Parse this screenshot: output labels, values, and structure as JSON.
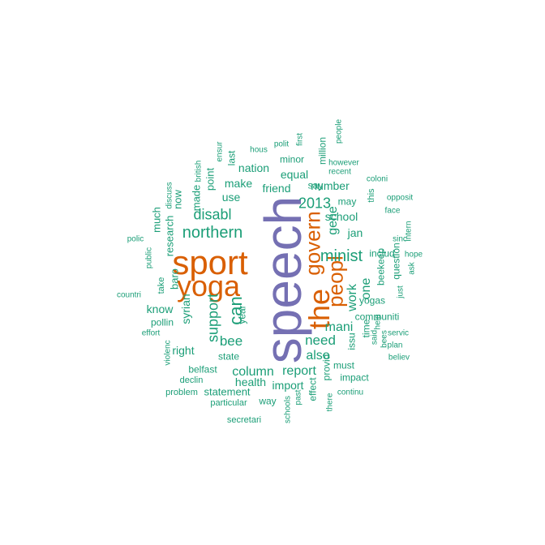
{
  "colors": {
    "teal": "#1b9e77",
    "orange": "#d95f02",
    "purple": "#7570b3"
  },
  "words": [
    {
      "text": "speech",
      "color": "purple"
    },
    {
      "text": "sport",
      "color": "orange"
    },
    {
      "text": "yoga",
      "color": "orange"
    },
    {
      "text": "the",
      "color": "orange"
    },
    {
      "text": "govern",
      "color": "orange"
    },
    {
      "text": "peopl",
      "color": "orange"
    },
    {
      "text": "northern",
      "color": "teal"
    },
    {
      "text": "minist",
      "color": "teal"
    },
    {
      "text": "disabl",
      "color": "teal"
    },
    {
      "text": "can",
      "color": "teal"
    },
    {
      "text": "2013",
      "color": "teal"
    },
    {
      "text": "support",
      "color": "teal"
    },
    {
      "text": "need",
      "color": "teal"
    },
    {
      "text": "mani",
      "color": "teal"
    },
    {
      "text": "work",
      "color": "teal"
    },
    {
      "text": "one",
      "color": "teal"
    },
    {
      "text": "gene",
      "color": "teal"
    },
    {
      "text": "bee",
      "color": "teal"
    },
    {
      "text": "also",
      "color": "teal"
    },
    {
      "text": "report",
      "color": "teal"
    },
    {
      "text": "column",
      "color": "teal"
    },
    {
      "text": "school",
      "color": "teal"
    },
    {
      "text": "jan",
      "color": "teal"
    },
    {
      "text": "use",
      "color": "teal"
    },
    {
      "text": "make",
      "color": "teal"
    },
    {
      "text": "nation",
      "color": "teal"
    },
    {
      "text": "equal",
      "color": "teal"
    },
    {
      "text": "friend",
      "color": "teal"
    },
    {
      "text": "number",
      "color": "teal"
    },
    {
      "text": "may",
      "color": "teal"
    },
    {
      "text": "includ",
      "color": "teal"
    },
    {
      "text": "beekeep",
      "color": "teal"
    },
    {
      "text": "question",
      "color": "teal"
    },
    {
      "text": "yogas",
      "color": "teal"
    },
    {
      "text": "communiti",
      "color": "teal"
    },
    {
      "text": "health",
      "color": "teal"
    },
    {
      "text": "import",
      "color": "teal"
    },
    {
      "text": "statement",
      "color": "teal"
    },
    {
      "text": "state",
      "color": "teal"
    },
    {
      "text": "right",
      "color": "teal"
    },
    {
      "text": "know",
      "color": "teal"
    },
    {
      "text": "pollin",
      "color": "teal"
    },
    {
      "text": "syrian",
      "color": "teal"
    },
    {
      "text": "year",
      "color": "teal"
    },
    {
      "text": "research",
      "color": "teal"
    },
    {
      "text": "much",
      "color": "teal"
    },
    {
      "text": "now",
      "color": "teal"
    },
    {
      "text": "made",
      "color": "teal"
    },
    {
      "text": "point",
      "color": "teal"
    },
    {
      "text": "last",
      "color": "teal"
    },
    {
      "text": "minor",
      "color": "teal"
    },
    {
      "text": "million",
      "color": "teal"
    },
    {
      "text": "say",
      "color": "teal"
    },
    {
      "text": "this",
      "color": "teal"
    },
    {
      "text": "time",
      "color": "teal"
    },
    {
      "text": "issu",
      "color": "teal"
    },
    {
      "text": "provid",
      "color": "teal"
    },
    {
      "text": "must",
      "color": "teal"
    },
    {
      "text": "impact",
      "color": "teal"
    },
    {
      "text": "effect",
      "color": "teal"
    },
    {
      "text": "way",
      "color": "teal"
    },
    {
      "text": "belfast",
      "color": "teal"
    },
    {
      "text": "declin",
      "color": "teal"
    },
    {
      "text": "problem",
      "color": "teal"
    },
    {
      "text": "particular",
      "color": "teal"
    },
    {
      "text": "secretari",
      "color": "teal"
    },
    {
      "text": "schools",
      "color": "teal"
    },
    {
      "text": "past",
      "color": "teal"
    },
    {
      "text": "there",
      "color": "teal"
    },
    {
      "text": "continu",
      "color": "teal"
    },
    {
      "text": "bees",
      "color": "teal"
    },
    {
      "text": "said",
      "color": "teal"
    },
    {
      "text": "help",
      "color": "teal"
    },
    {
      "text": "servic",
      "color": "teal"
    },
    {
      "text": "plan",
      "color": "teal"
    },
    {
      "text": "believ",
      "color": "teal"
    },
    {
      "text": "just",
      "color": "teal"
    },
    {
      "text": "ask",
      "color": "teal"
    },
    {
      "text": "hope",
      "color": "teal"
    },
    {
      "text": "intern",
      "color": "teal"
    },
    {
      "text": "sinc",
      "color": "teal"
    },
    {
      "text": "face",
      "color": "teal"
    },
    {
      "text": "opposit",
      "color": "teal"
    },
    {
      "text": "coloni",
      "color": "teal"
    },
    {
      "text": "however",
      "color": "teal"
    },
    {
      "text": "recent",
      "color": "teal"
    },
    {
      "text": "people",
      "color": "teal"
    },
    {
      "text": "first",
      "color": "teal"
    },
    {
      "text": "polit",
      "color": "teal"
    },
    {
      "text": "hous",
      "color": "teal"
    },
    {
      "text": "ensur",
      "color": "teal"
    },
    {
      "text": "british",
      "color": "teal"
    },
    {
      "text": "discuss",
      "color": "teal"
    },
    {
      "text": "public",
      "color": "teal"
    },
    {
      "text": "polic",
      "color": "teal"
    },
    {
      "text": "baro",
      "color": "teal"
    },
    {
      "text": "take",
      "color": "teal"
    },
    {
      "text": "countri",
      "color": "teal"
    },
    {
      "text": "effort",
      "color": "teal"
    },
    {
      "text": "violenc",
      "color": "teal"
    }
  ]
}
